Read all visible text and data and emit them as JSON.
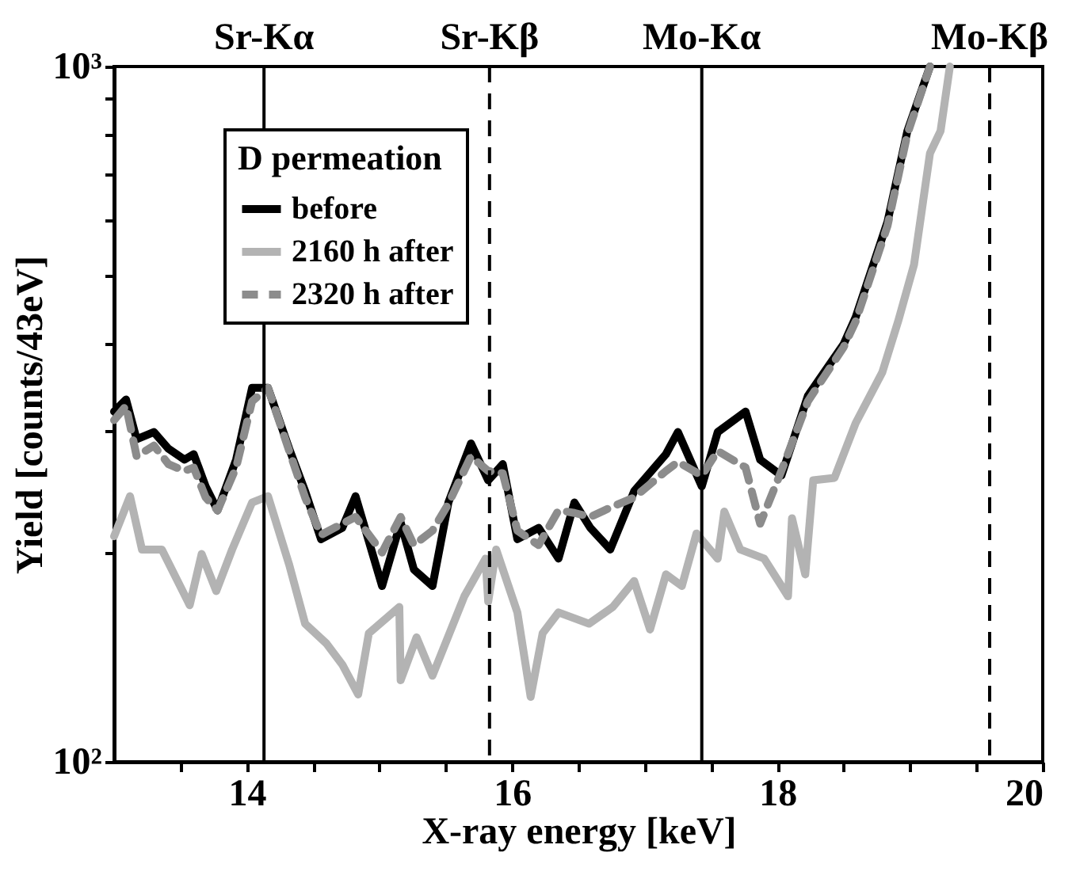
{
  "chart_data": {
    "type": "line",
    "xlabel": "X-ray energy [keV]",
    "ylabel": "Yield [counts/43eV]",
    "legend_title": "D permeation",
    "xlim": [
      13,
      20
    ],
    "xticks": [
      {
        "value": 13.5,
        "label": null
      },
      14,
      {
        "value": 14.5,
        "label": null
      },
      {
        "value": 15,
        "label": null
      },
      {
        "value": 15.5,
        "label": null
      },
      16,
      {
        "value": 16.5,
        "label": null
      },
      {
        "value": 17,
        "label": null
      },
      {
        "value": 17.5,
        "label": null
      },
      18,
      {
        "value": 18.5,
        "label": null
      },
      {
        "value": 19,
        "label": null
      },
      {
        "value": 19.5,
        "label": null
      },
      20
    ],
    "ylim": [
      100,
      1000
    ],
    "yticks": [
      {
        "value": 100,
        "label": "10²"
      },
      {
        "value": 200,
        "label": null
      },
      {
        "value": 300,
        "label": null
      },
      {
        "value": 400,
        "label": null
      },
      {
        "value": 500,
        "label": null
      },
      {
        "value": 600,
        "label": null
      },
      {
        "value": 700,
        "label": null
      },
      {
        "value": 800,
        "label": null
      },
      {
        "value": 900,
        "label": null
      },
      {
        "value": 1000,
        "label": "10³"
      }
    ],
    "log": "y",
    "grid": false,
    "legend": "top left",
    "marker": "none",
    "series": [
      {
        "name": "before",
        "color": "#000000",
        "line_style": "solid",
        "x": [
          13.0,
          13.09,
          13.17,
          13.3,
          13.41,
          13.53,
          13.6,
          13.69,
          13.78,
          13.92,
          14.04,
          14.16,
          14.32,
          14.44,
          14.56,
          14.72,
          14.82,
          15.02,
          15.16,
          15.26,
          15.4,
          15.52,
          15.69,
          15.82,
          15.93,
          16.04,
          16.2,
          16.35,
          16.47,
          16.59,
          16.74,
          16.92,
          17.16,
          17.25,
          17.43,
          17.55,
          17.76,
          17.87,
          18.03,
          18.23,
          18.5,
          18.59,
          18.83,
          18.98,
          19.15
        ],
        "values": [
          319,
          332,
          291,
          298,
          282,
          272,
          277,
          249,
          230,
          272,
          345,
          345,
          282,
          245,
          209,
          217,
          241,
          179,
          221,
          189,
          179,
          236,
          287,
          254,
          268,
          209,
          217,
          196,
          236,
          217,
          202,
          245,
          277,
          298,
          249,
          298,
          319,
          272,
          258,
          336,
          399,
          436,
          598,
          808,
          1000
        ]
      },
      {
        "name": "2160 h after",
        "color": "#b3b3b3",
        "line_style": "solid",
        "x": [
          13.0,
          13.12,
          13.21,
          13.36,
          13.57,
          13.66,
          13.77,
          13.89,
          14.04,
          14.16,
          14.32,
          14.44,
          14.6,
          14.72,
          14.84,
          14.92,
          15.15,
          15.16,
          15.28,
          15.4,
          15.64,
          15.8,
          15.82,
          15.88,
          16.04,
          16.14,
          16.23,
          16.35,
          16.58,
          16.76,
          16.92,
          17.04,
          17.16,
          17.28,
          17.39,
          17.55,
          17.6,
          17.72,
          17.9,
          18.08,
          18.11,
          18.21,
          18.27,
          18.43,
          18.59,
          18.79,
          18.91,
          19.03,
          19.15,
          19.23,
          19.3
        ],
        "values": [
          211,
          241,
          202,
          202,
          168,
          199,
          176,
          202,
          236,
          241,
          192,
          158,
          148,
          138,
          125,
          153,
          167,
          131,
          151,
          133,
          173,
          196,
          170,
          202,
          164,
          124,
          153,
          164,
          158,
          167,
          182,
          155,
          186,
          179,
          213,
          196,
          229,
          202,
          196,
          173,
          224,
          186,
          254,
          256,
          307,
          363,
          430,
          519,
          750,
          808,
          1000
        ]
      },
      {
        "name": "2320 h after",
        "color": "#8c8c8c",
        "line_style": "dashed",
        "x": [
          13.0,
          13.09,
          13.17,
          13.3,
          13.41,
          13.53,
          13.6,
          13.69,
          13.78,
          13.92,
          14.04,
          14.16,
          14.32,
          14.44,
          14.56,
          14.72,
          14.82,
          15.02,
          15.16,
          15.26,
          15.4,
          15.52,
          15.69,
          15.82,
          15.93,
          16.04,
          16.2,
          16.35,
          16.47,
          16.59,
          16.74,
          16.92,
          17.16,
          17.25,
          17.43,
          17.55,
          17.76,
          17.87,
          18.03,
          18.23,
          18.5,
          18.59,
          18.83,
          18.98,
          19.15
        ],
        "values": [
          310,
          325,
          275,
          285,
          268,
          262,
          265,
          240,
          230,
          265,
          330,
          345,
          280,
          240,
          212,
          220,
          225,
          200,
          225,
          205,
          215,
          235,
          275,
          262,
          260,
          215,
          205,
          230,
          228,
          225,
          232,
          240,
          262,
          270,
          258,
          280,
          265,
          220,
          262,
          330,
          395,
          430,
          590,
          800,
          1000
        ]
      }
    ],
    "ref_lines": [
      {
        "axis": "x",
        "value": 14.13,
        "label": "Sr-Kα",
        "color": "#000000",
        "line_style": "solid"
      },
      {
        "axis": "x",
        "value": 15.83,
        "label": "Sr-Kβ",
        "color": "#000000",
        "line_style": "dashed"
      },
      {
        "axis": "x",
        "value": 17.43,
        "label": "Mo-Kα",
        "color": "#000000",
        "line_style": "solid"
      },
      {
        "axis": "x",
        "value": 19.6,
        "label": "Mo-Kβ",
        "color": "#000000",
        "line_style": "dashed"
      }
    ]
  }
}
